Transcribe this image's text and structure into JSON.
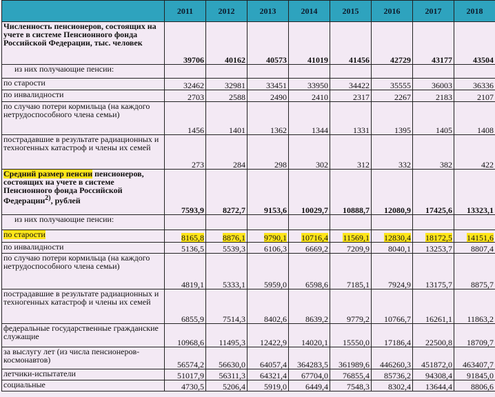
{
  "years": [
    "2011",
    "2012",
    "2013",
    "2014",
    "2015",
    "2016",
    "2017",
    "2018"
  ],
  "sections": [
    {
      "title": "Численность пенсионеров, состоящих на учете в системе Пенсионного фонда Российской Федерации, тыс. человек",
      "values": [
        "39706",
        "40162",
        "40573",
        "41019",
        "41456",
        "42729",
        "43177",
        "43504"
      ],
      "subheader": "из них получающие пенсии:",
      "rows": [
        {
          "label": "по старости",
          "values": [
            "32462",
            "32981",
            "33451",
            "33950",
            "34422",
            "35555",
            "36003",
            "36336"
          ]
        },
        {
          "label": "по инвалидности",
          "values": [
            "2703",
            "2588",
            "2490",
            "2410",
            "2317",
            "2267",
            "2183",
            "2107"
          ]
        },
        {
          "label": "по случаю потери кормильца (на каждого нетрудоспособного члена семьи)",
          "values": [
            "1456",
            "1401",
            "1362",
            "1344",
            "1331",
            "1395",
            "1405",
            "1408"
          ]
        },
        {
          "label": "пострадавшие в результате радиационных и техногенных катастроф и члены их семей",
          "values": [
            "273",
            "284",
            "298",
            "302",
            "312",
            "332",
            "382",
            "422"
          ]
        }
      ]
    },
    {
      "title_highlight": "Средний размер пенсии",
      "title_rest": "пенсионеров, состоящих на учете в системе Пенсионного фонда Российской Федерации",
      "title_sup": "2)",
      "title_tail": ", рублей",
      "values": [
        "7593,9",
        "8272,7",
        "9153,6",
        "10029,7",
        "10888,7",
        "12080,9",
        "17425,6",
        "13323,1"
      ],
      "subheader": "из них получающие пенсии:",
      "rows": [
        {
          "label": "по старости",
          "values": [
            "8165,8",
            "8876,1",
            "9790,1",
            "10716,4",
            "11569,1",
            "12830,4",
            "18172,5",
            "14151,6"
          ]
        },
        {
          "label": "по инвалидности",
          "values": [
            "5136,5",
            "5539,3",
            "6106,3",
            "6669,2",
            "7209,9",
            "8040,1",
            "13253,7",
            "8807,4"
          ]
        },
        {
          "label": "по случаю потери кормильца (на каждого нетрудоспособного члена семьи)",
          "values": [
            "4819,1",
            "5333,1",
            "5959,0",
            "6598,6",
            "7185,1",
            "7924,9",
            "13175,7",
            "8875,7"
          ]
        },
        {
          "label": "пострадавшие в результате радиационных и техногенных катастроф и члены их семей",
          "values": [
            "6855,9",
            "7514,3",
            "8402,6",
            "8639,2",
            "9779,2",
            "10766,7",
            "16261,1",
            "11863,2"
          ]
        },
        {
          "label": "федеральные государственные гражданские служащие",
          "values": [
            "10968,6",
            "11495,3",
            "12422,9",
            "14020,1",
            "15550,0",
            "17186,4",
            "22500,8",
            "18709,7"
          ]
        },
        {
          "label": "за выслугу лет (из числа пенсионеров-космонавтов)",
          "values": [
            "56574,2",
            "56630,0",
            "64057,4",
            "364283,5",
            "361989,6",
            "446260,3",
            "451872,0",
            "463407,7"
          ]
        },
        {
          "label": "летчики-испытатели",
          "values": [
            "51017,9",
            "56311,3",
            "64321,4",
            "67704,0",
            "76855,4",
            "85736,2",
            "94308,4",
            "91845,0"
          ]
        },
        {
          "label": "социальные",
          "values": [
            "4730,5",
            "5206,4",
            "5919,0",
            "6449,4",
            "7548,3",
            "8302,4",
            "13644,4",
            "8806,6"
          ]
        }
      ]
    }
  ],
  "colors": {
    "header_bg": "#2ea3be",
    "table_bg": "#f3e9f4",
    "highlight": "#ffe51a"
  }
}
